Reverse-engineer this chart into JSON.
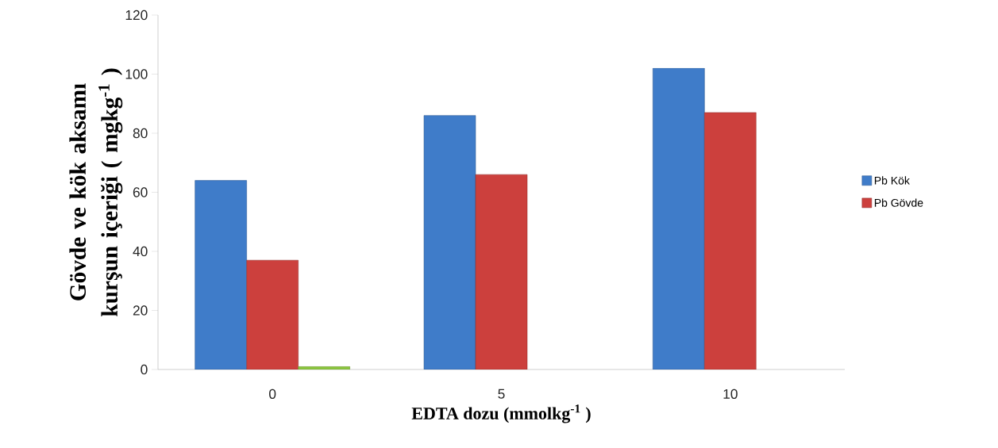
{
  "chart_data": {
    "type": "bar",
    "xlabel": "EDTA dozu (mmolkg$^{-1}$ )",
    "ylabel": "Gövde ve kök aksamı kurşun içeriği ( mgkg$^{-1}$ )",
    "categories": [
      "0",
      "5",
      "10"
    ],
    "series": [
      {
        "name": "Pb Kök",
        "color": "#3f7cc9",
        "values": [
          64,
          86,
          102
        ]
      },
      {
        "name": "Pb Gövde",
        "color": "#cc403d",
        "values": [
          37,
          66,
          87
        ]
      },
      {
        "color": "#8cc63f",
        "values": [
          1,
          null,
          null
        ]
      }
    ],
    "ylim": [
      0,
      120
    ],
    "yticks": [
      0,
      20,
      40,
      60,
      80,
      100,
      120
    ],
    "grid": false,
    "legend": "right"
  }
}
